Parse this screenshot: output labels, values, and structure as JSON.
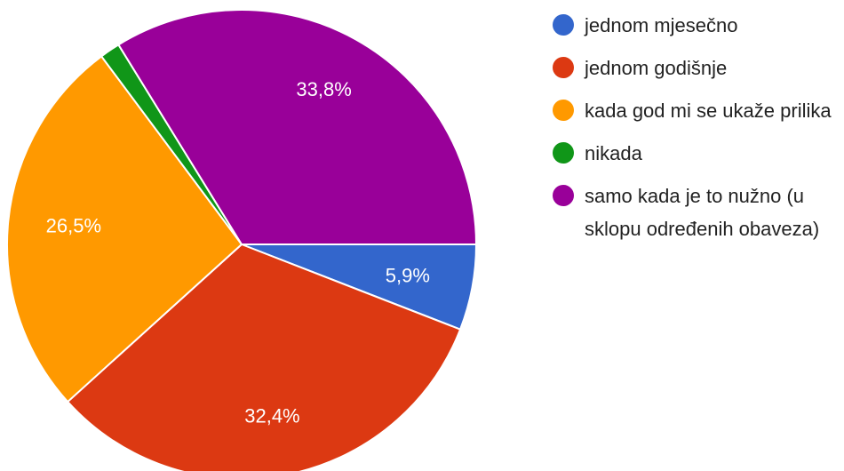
{
  "chart_data": {
    "type": "pie",
    "categories": [
      "jednom mjesečno",
      "jednom godišnje",
      "kada god mi se ukaže prilika",
      "nikada",
      "samo kada je to nužno (u sklopu određenih obaveza)"
    ],
    "values": [
      5.9,
      32.4,
      26.5,
      1.4,
      33.8
    ],
    "value_labels": [
      "5,9%",
      "32,4%",
      "26,5%",
      null,
      "33,8%"
    ],
    "colors": [
      "#3366cc",
      "#dc3912",
      "#ff9900",
      "#109618",
      "#990099"
    ],
    "legend": "right"
  }
}
